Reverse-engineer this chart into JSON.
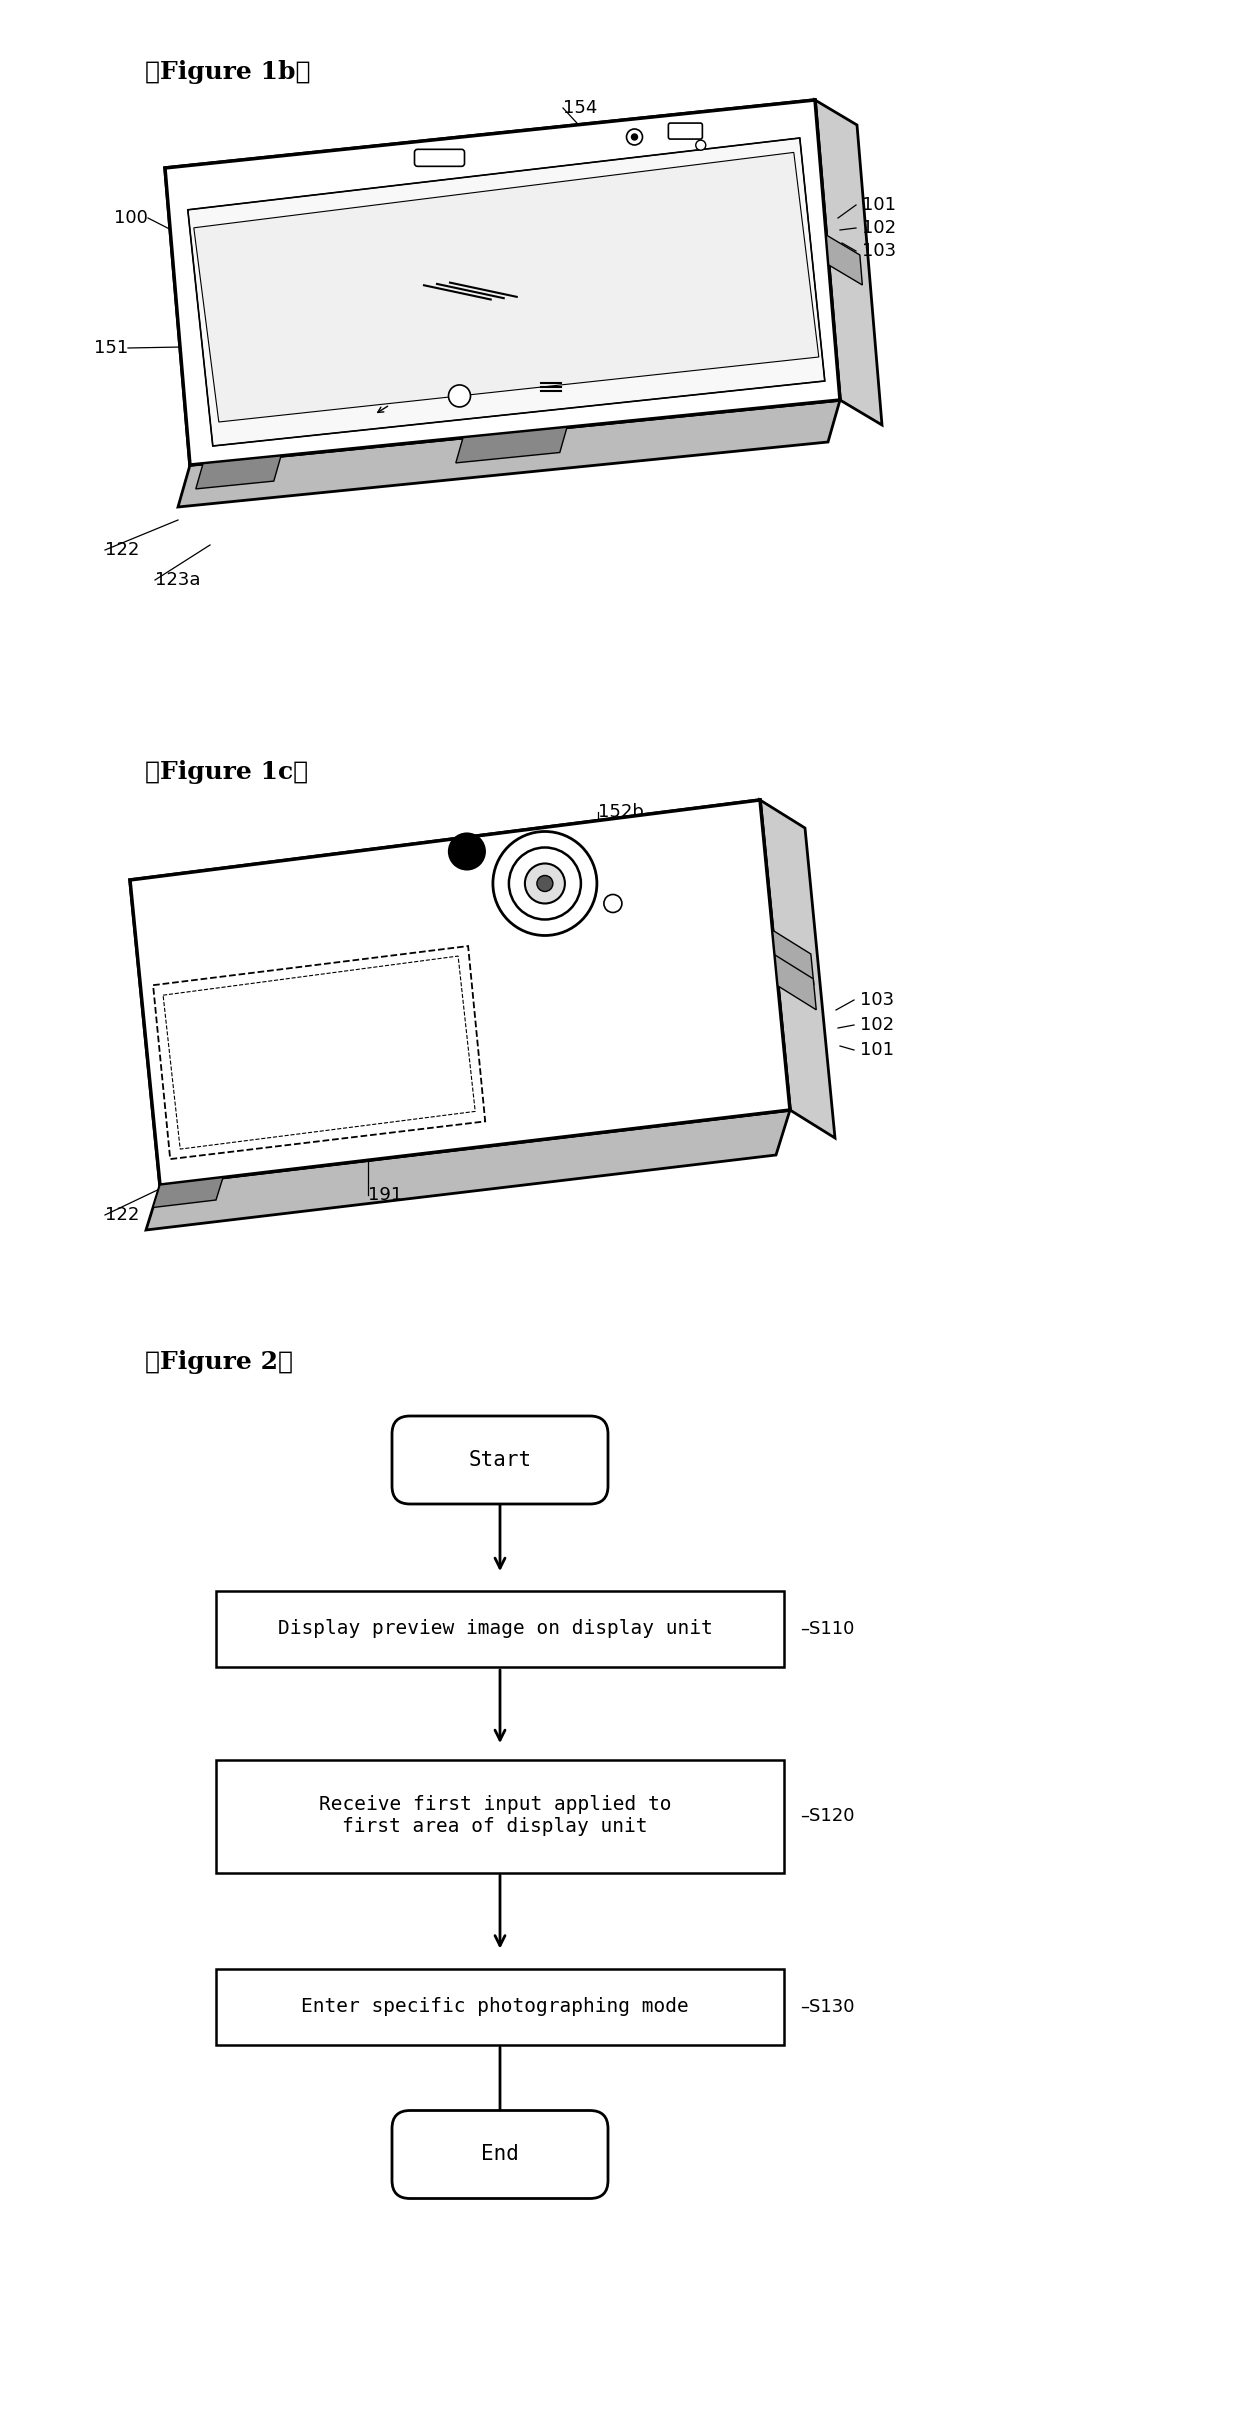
{
  "fig_width": 12.4,
  "fig_height": 24.3,
  "bg_color": "#ffffff",
  "fig1b_label": "【Figure 1b】",
  "fig1c_label": "【Figure 1c】",
  "fig2_label": "【Figure 2】",
  "flowchart": {
    "start_label": "Start",
    "end_label": "End",
    "steps": [
      {
        "label": "Display preview image on display unit",
        "step_id": "S110"
      },
      {
        "label": "Receive first input applied to\nfirst area of display unit",
        "step_id": "S120"
      },
      {
        "label": "Enter specific photographing mode",
        "step_id": "S130"
      }
    ]
  }
}
